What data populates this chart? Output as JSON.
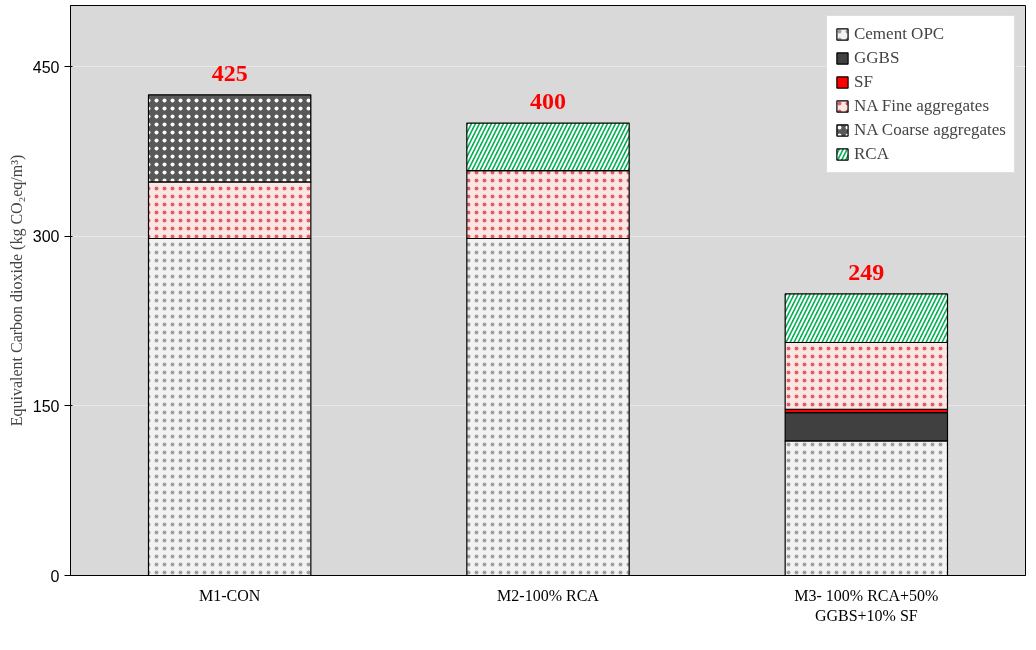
{
  "chart_data": {
    "type": "bar",
    "stacked": true,
    "ylabel": "Equivalent Carbon dioxide (kg CO₂eq/m³)",
    "categories": [
      "M1-CON",
      "M2-100% RCA",
      "M3- 100% RCA+50% GGBS+10% SF"
    ],
    "series": [
      {
        "name": "Cement OPC",
        "color": "#f2f2f2",
        "values": [
          298,
          298,
          119
        ]
      },
      {
        "name": "GGBS",
        "color": "#404040",
        "values": [
          null,
          null,
          25
        ]
      },
      {
        "name": "SF",
        "color": "#ff0000",
        "values": [
          null,
          null,
          3
        ]
      },
      {
        "name": "NA Fine aggregates",
        "color": "#fbe6e6",
        "values": [
          50,
          60,
          59
        ]
      },
      {
        "name": "NA Coarse aggregates",
        "color": "#595959",
        "values": [
          77,
          null,
          null
        ]
      },
      {
        "name": "RCA",
        "color": "#00b050",
        "values": [
          null,
          42,
          43
        ]
      }
    ],
    "totals": [
      "425",
      "400",
      "249"
    ],
    "ylim": [
      0,
      504
    ],
    "yticks": [
      0,
      150,
      300,
      450
    ],
    "grid": "y",
    "legend": "top right"
  }
}
